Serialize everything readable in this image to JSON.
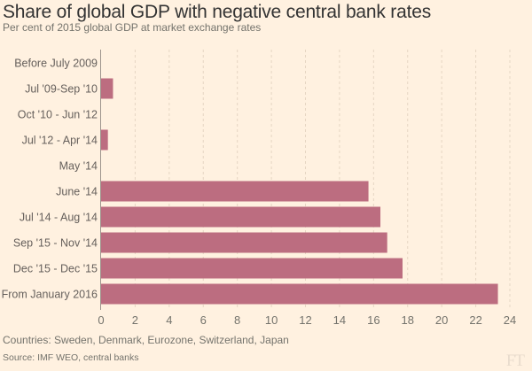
{
  "header": {
    "title": "Share of global GDP with negative central bank rates",
    "subtitle": "Per cent of 2015 global GDP at market exchange rates"
  },
  "footer": {
    "note": "Countries: Sweden, Denmark, Eurozone, Switzerland, Japan",
    "source": "Source: IMF WEO, central banks",
    "logo": "FT"
  },
  "colors": {
    "bar": "#bc6d80",
    "background": "#fff1e0",
    "gridline": "#e6d6c3",
    "axis": "#9e958d"
  },
  "chart_data": {
    "type": "bar",
    "orientation": "horizontal",
    "title": "Share of global GDP with negative central bank rates",
    "subtitle": "Per cent of 2015 global GDP at market exchange rates",
    "xlabel": "",
    "ylabel": "",
    "categories": [
      "Before July 2009",
      "Jul '09-Sep '10",
      "Oct '10 - Jun '12",
      "Jul '12 - Apr '14",
      "May '14",
      "June '14",
      "Jul '14 - Aug '14",
      "Sep '15 - Nov '14",
      "Dec '15 - Dec '15",
      "From January 2016"
    ],
    "values": [
      0,
      0.7,
      0,
      0.4,
      0,
      15.7,
      16.4,
      16.8,
      17.7,
      23.3
    ],
    "xlim": [
      0,
      24
    ],
    "xticks": [
      0,
      2,
      4,
      6,
      8,
      10,
      12,
      14,
      16,
      18,
      20,
      22,
      24
    ],
    "grid": "vertical dashed"
  }
}
